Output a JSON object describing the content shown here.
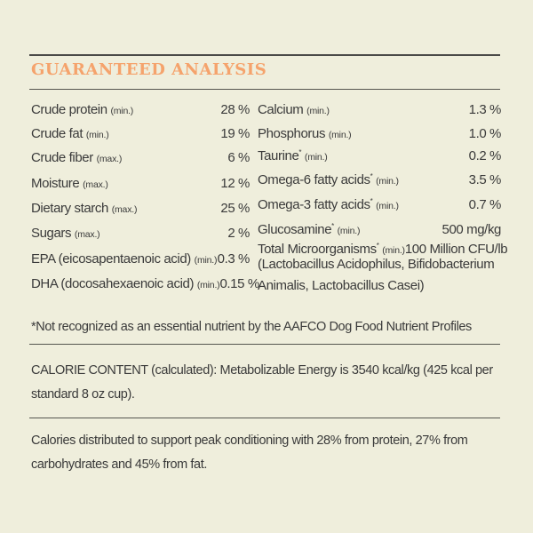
{
  "title": "GUARANTEED ANALYSIS",
  "left_rows": [
    {
      "label": "Crude protein",
      "qualifier": "(min.)",
      "value": "28 %"
    },
    {
      "label": "Crude fat",
      "qualifier": "(min.)",
      "value": "19 %"
    },
    {
      "label": "Crude fiber",
      "qualifier": "(max.)",
      "value": "6 %"
    },
    {
      "label": "Moisture",
      "qualifier": "(max.)",
      "value": "12 %"
    },
    {
      "label": "Dietary starch",
      "qualifier": "(max.)",
      "value": "25 %"
    },
    {
      "label": "Sugars",
      "qualifier": "(max.)",
      "value": "2 %"
    },
    {
      "label": "EPA (eicosapentaenoic acid)",
      "qualifier": "(min.)",
      "value": "0.3 %"
    },
    {
      "label": "DHA (docosahexaenoic acid)",
      "qualifier": "(min.)",
      "value": "0.15 %"
    }
  ],
  "right_rows": [
    {
      "label": "Calcium",
      "star": "",
      "qualifier": "(min.)",
      "value": "1.3 %"
    },
    {
      "label": "Phosphorus",
      "star": "",
      "qualifier": "(min.)",
      "value": "1.0 %"
    },
    {
      "label": "Taurine",
      "star": "*",
      "qualifier": "(min.)",
      "value": "0.2 %"
    },
    {
      "label": "Omega-6 fatty acids",
      "star": "*",
      "qualifier": "(min.)",
      "value": "3.5 %"
    },
    {
      "label": "Omega-3 fatty acids",
      "star": "*",
      "qualifier": "(min.)",
      "value": "0.7 %"
    },
    {
      "label": "Glucosamine",
      "star": "*",
      "qualifier": "(min.)",
      "value": "500 mg/kg"
    },
    {
      "label": "Total Microorganisms",
      "star": "*",
      "qualifier": "(min.)",
      "value": "100 Million CFU/lb"
    }
  ],
  "microorganisms_line2": "(Lactobacillus Acidophilus, Bifidobacterium",
  "microorganisms_line3": "Animalis, Lactobacillus Casei)",
  "footnote": "*Not recognized as an essential nutrient by the AAFCO Dog Food Nutrient Profiles",
  "calorie_content": "CALORIE CONTENT (calculated): Metabolizable Energy is 3540 kcal/kg (425 kcal per standard 8 oz cup).",
  "calories_distribution": "Calories distributed to support peak conditioning with 28% from protein, 27% from carbohydrates and 45% from fat.",
  "colors": {
    "background": "#efeedc",
    "title": "#f5a36c",
    "text": "#3a3a3a",
    "rule": "#4a4a48"
  }
}
